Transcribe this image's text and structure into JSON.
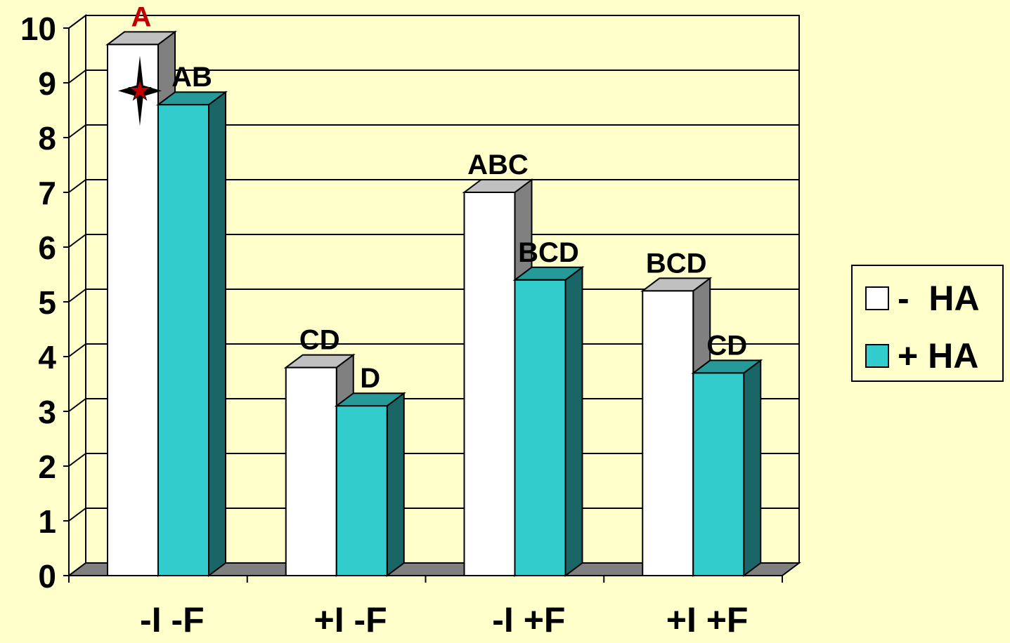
{
  "chart_data": {
    "type": "bar",
    "categories": [
      "-I -F",
      "+I -F",
      "-I +F",
      "+I +F"
    ],
    "series": [
      {
        "name": "-  HA",
        "color": "#FFFFFF",
        "values": [
          9.7,
          3.8,
          7.0,
          5.2
        ],
        "labels": [
          "A",
          "CD",
          "ABC",
          "BCD"
        ]
      },
      {
        "name": "+ HA",
        "color": "#33CCCC",
        "values": [
          8.6,
          3.1,
          5.4,
          3.7
        ],
        "labels": [
          "AB",
          "D",
          "BCD",
          "CD"
        ]
      }
    ],
    "yticks": [
      "0",
      "1",
      "2",
      "3",
      "4",
      "5",
      "6",
      "7",
      "8",
      "9",
      "10"
    ],
    "ylim": [
      0,
      10
    ],
    "grid": true,
    "legend_position": "right",
    "highlight": {
      "category": "-I -F",
      "series": "-  HA",
      "label_color": "#C00000",
      "marker": "star-icon"
    },
    "colors": {
      "background": "#FFFFCC",
      "wall": "#FFFFCC",
      "floor": "#808080",
      "white_side": "#808080",
      "white_top": "#C0C0C0",
      "teal_side": "#1A6666",
      "teal_top": "#269999"
    }
  }
}
